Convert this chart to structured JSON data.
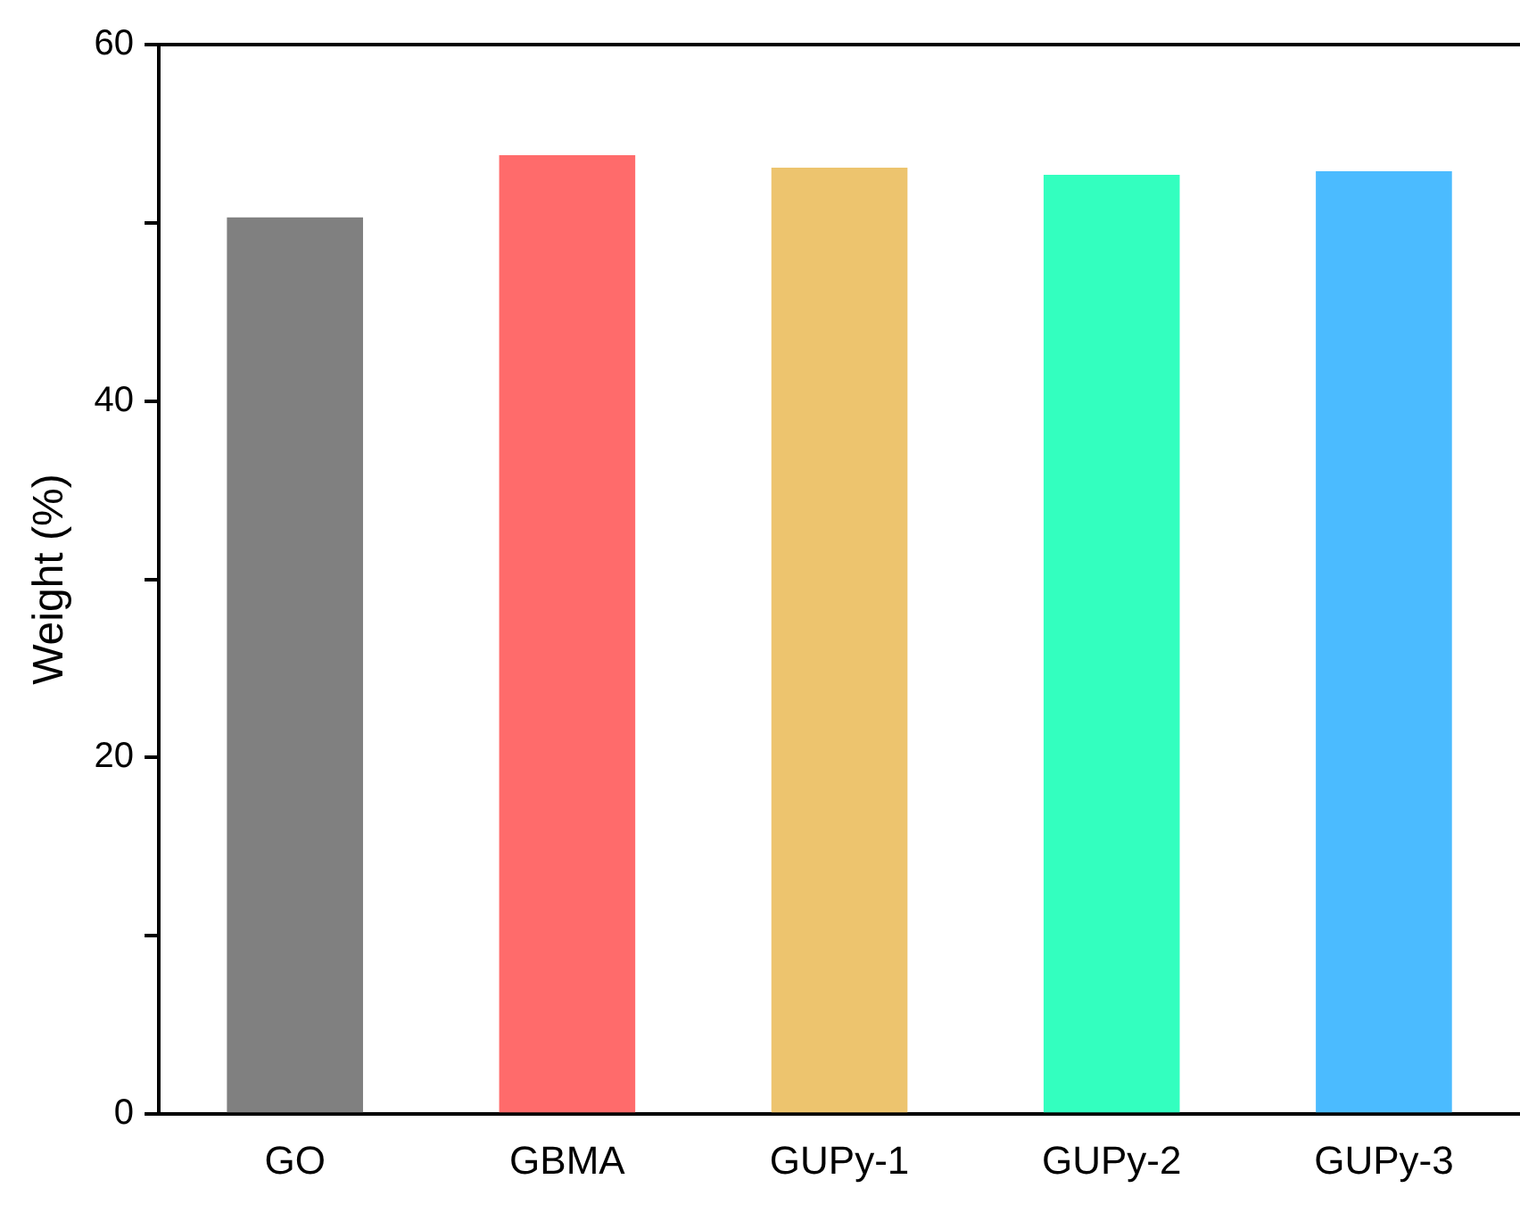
{
  "chart_data": {
    "type": "bar",
    "ylabel": "Weight (%)",
    "categories": [
      "GO",
      "GBMA",
      "GUPy-1",
      "GUPy-2",
      "GUPy-3"
    ],
    "values": [
      50.3,
      53.8,
      53.1,
      52.7,
      52.9
    ],
    "colors": [
      "#808080",
      "#ff6b6b",
      "#edc46e",
      "#33ffbf",
      "#4bbbff"
    ],
    "ylim": [
      0,
      60
    ],
    "yticks": [
      0,
      {
        "value": 10,
        "label": null
      },
      20,
      {
        "value": 30,
        "label": null
      },
      40,
      {
        "value": 50,
        "label": null
      },
      60
    ],
    "grid": false,
    "legend": false
  }
}
